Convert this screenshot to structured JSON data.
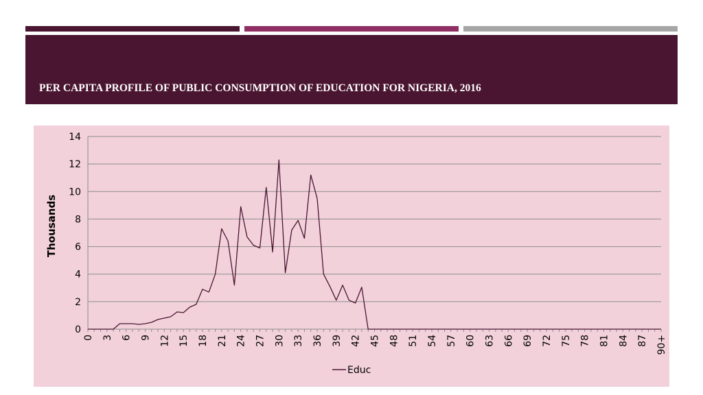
{
  "slide": {
    "title": "PER CAPITA PROFILE OF PUBLIC CONSUMPTION OF EDUCATION FOR NIGERIA, 2016"
  },
  "colors": {
    "header": "#4a1530",
    "accent_bar_1": "#4a1530",
    "accent_bar_2": "#8e2e62",
    "accent_bar_3": "#a6a6a6",
    "chart_background": "#f2d1db",
    "series_line": "#4a1530"
  },
  "chart_data": {
    "type": "line",
    "title": "",
    "xlabel": "",
    "ylabel": "Thousands",
    "ylim": [
      0,
      14
    ],
    "yticks": [
      "0",
      "2",
      "4",
      "6",
      "8",
      "10",
      "12",
      "14"
    ],
    "grid": true,
    "legend": "bottom",
    "x_tick_labels": [
      "0",
      "3",
      "6",
      "9",
      "12",
      "15",
      "18",
      "21",
      "24",
      "27",
      "30",
      "33",
      "36",
      "39",
      "42",
      "45",
      "48",
      "51",
      "54",
      "57",
      "60",
      "63",
      "66",
      "69",
      "72",
      "75",
      "78",
      "81",
      "84",
      "87",
      "90+"
    ],
    "series": [
      {
        "name": "Educ",
        "values": [
          0,
          0,
          0,
          0,
          0,
          0.4,
          0.4,
          0.4,
          0.35,
          0.4,
          0.5,
          0.7,
          0.8,
          0.9,
          1.25,
          1.2,
          1.6,
          1.8,
          2.9,
          2.7,
          4.0,
          7.3,
          6.4,
          3.2,
          8.9,
          6.7,
          6.1,
          5.9,
          10.3,
          5.6,
          12.3,
          4.1,
          7.2,
          7.9,
          6.6,
          11.2,
          9.5,
          4.0,
          3.1,
          2.1,
          3.2,
          2.1,
          1.9,
          3.05,
          0,
          0,
          0,
          0,
          0,
          0,
          0,
          0,
          0,
          0,
          0,
          0,
          0,
          0,
          0,
          0,
          0,
          0,
          0,
          0,
          0,
          0,
          0,
          0,
          0,
          0,
          0,
          0,
          0,
          0,
          0,
          0,
          0,
          0,
          0,
          0,
          0,
          0,
          0,
          0,
          0,
          0,
          0,
          0,
          0,
          0,
          0
        ]
      }
    ]
  }
}
